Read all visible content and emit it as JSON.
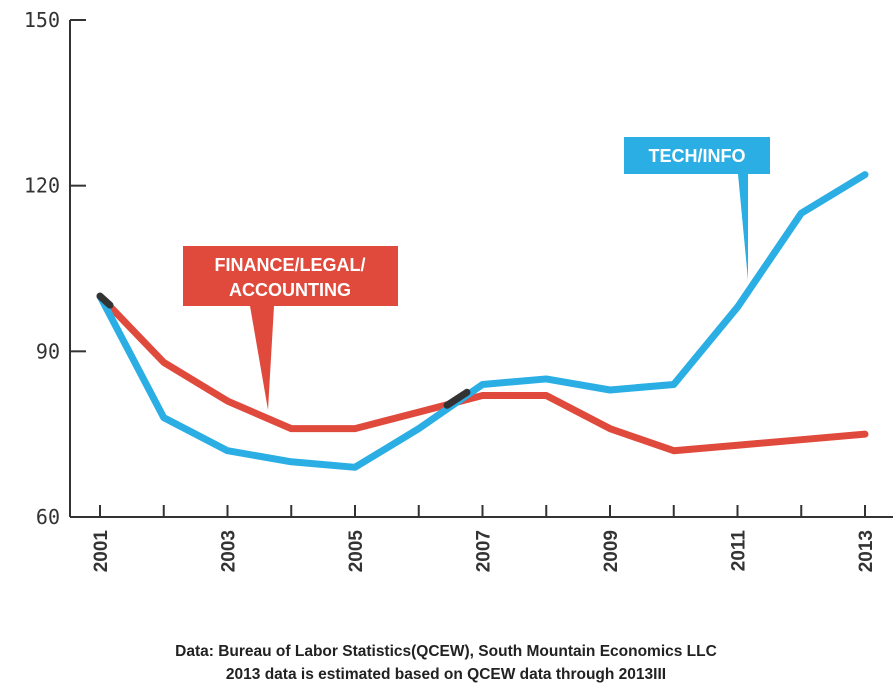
{
  "chart_data": {
    "type": "line",
    "x": [
      2001,
      2002,
      2003,
      2004,
      2005,
      2006,
      2007,
      2008,
      2009,
      2010,
      2011,
      2012,
      2013
    ],
    "xticks": [
      "2001",
      "2003",
      "2005",
      "2007",
      "2009",
      "2011",
      "2013"
    ],
    "yticks": [
      "60",
      "90",
      "120",
      "150"
    ],
    "ylim": [
      60,
      150
    ],
    "xlim": [
      2001,
      2013
    ],
    "grid": false,
    "series": [
      {
        "name": "FINANCE/LEGAL/ ACCOUNTING",
        "label_lines": [
          "FINANCE/LEGAL/",
          "ACCOUNTING"
        ],
        "color": "#e04a3c",
        "values": [
          100,
          88,
          81,
          76,
          76,
          79,
          82,
          82,
          76,
          72,
          73,
          74,
          75
        ]
      },
      {
        "name": "TECH/INFO",
        "label_lines": [
          "TECH/INFO"
        ],
        "color": "#2aaee4",
        "values": [
          100,
          78,
          72,
          70,
          69,
          76,
          84,
          85,
          83,
          84,
          98,
          115,
          122
        ]
      }
    ],
    "overlap_color": "#333333",
    "footnote": [
      "Data: Bureau of Labor Statistics(QCEW), South Mountain Economics LLC",
      "2013 data is estimated based on QCEW data through 2013III"
    ]
  }
}
